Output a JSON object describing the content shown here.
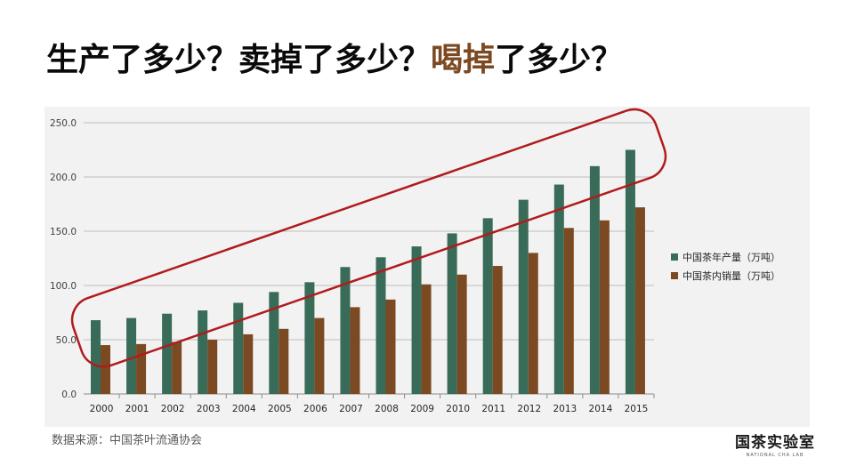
{
  "slide": {
    "title_part1": "生产了多少？卖掉了多少？",
    "title_highlight": "喝掉",
    "title_part2": "了多少？",
    "source": "数据来源：中国茶叶流通协会",
    "logo_text": "国茶实验室",
    "logo_sub": "NATIONAL CHA LAB"
  },
  "colors": {
    "production": "#386b58",
    "sales": "#7b4a22",
    "highlight_ellipse": "#b01c1c",
    "grid": "#bfbfbf"
  },
  "chart_data": {
    "type": "bar",
    "categories": [
      "2000",
      "2001",
      "2002",
      "2003",
      "2004",
      "2005",
      "2006",
      "2007",
      "2008",
      "2009",
      "2010",
      "2011",
      "2012",
      "2013",
      "2014",
      "2015"
    ],
    "series": [
      {
        "name": "中国茶年产量（万吨）",
        "values": [
          68,
          70,
          74,
          77,
          84,
          94,
          103,
          117,
          126,
          136,
          148,
          162,
          179,
          193,
          210,
          225
        ]
      },
      {
        "name": "中国茶内销量（万吨）",
        "values": [
          45,
          46,
          48,
          50,
          55,
          60,
          70,
          80,
          87,
          101,
          110,
          118,
          130,
          153,
          160,
          172
        ]
      }
    ],
    "ylim": [
      0,
      250
    ],
    "yticks": [
      "0.0",
      "50.0",
      "100.0",
      "150.0",
      "200.0",
      "250.0"
    ],
    "grid": true,
    "legend_position": "right"
  }
}
